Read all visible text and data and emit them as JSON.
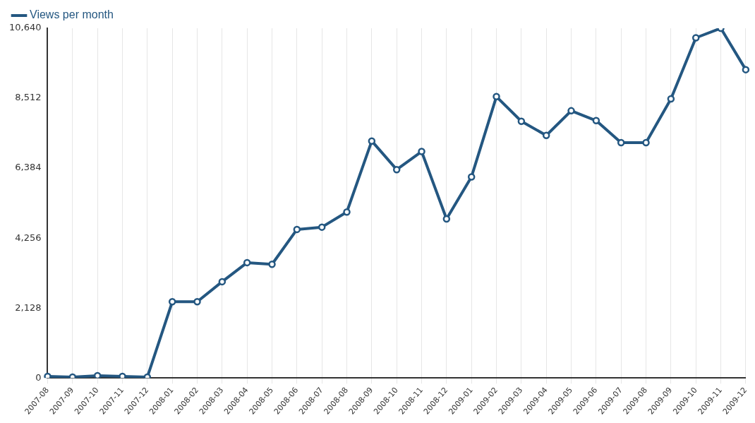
{
  "chart_data": {
    "type": "line",
    "categories": [
      "2007-08",
      "2007-09",
      "2007-10",
      "2007-11",
      "2007-12",
      "2008-01",
      "2008-02",
      "2008-03",
      "2008-04",
      "2008-05",
      "2008-06",
      "2008-07",
      "2008-08",
      "2008-09",
      "2008-10",
      "2008-11",
      "2008-12",
      "2009-01",
      "2009-02",
      "2009-03",
      "2009-04",
      "2009-05",
      "2009-06",
      "2009-07",
      "2009-08",
      "2009-09",
      "2009-10",
      "2009-11",
      "2009-12"
    ],
    "series": [
      {
        "name": "Views per month",
        "color": "#245781",
        "values": [
          50,
          30,
          70,
          50,
          30,
          2320,
          2320,
          2930,
          3510,
          3460,
          4520,
          4590,
          5050,
          7210,
          6340,
          6890,
          4840,
          6120,
          8560,
          7810,
          7380,
          8130,
          7830,
          7160,
          7160,
          8490,
          10350,
          10640,
          9380
        ]
      }
    ],
    "ylim": [
      0,
      10640
    ],
    "yticks": [
      0,
      {
        "value": 2128,
        "label": "2,128"
      },
      {
        "value": 4256,
        "label": "4,256"
      },
      {
        "value": 6384,
        "label": "6,384"
      },
      {
        "value": 8512,
        "label": "8,512"
      },
      {
        "value": 10640,
        "label": "10,640"
      }
    ],
    "grid": "x",
    "legend": "top left",
    "marker": "circle",
    "line_style": "solid"
  }
}
